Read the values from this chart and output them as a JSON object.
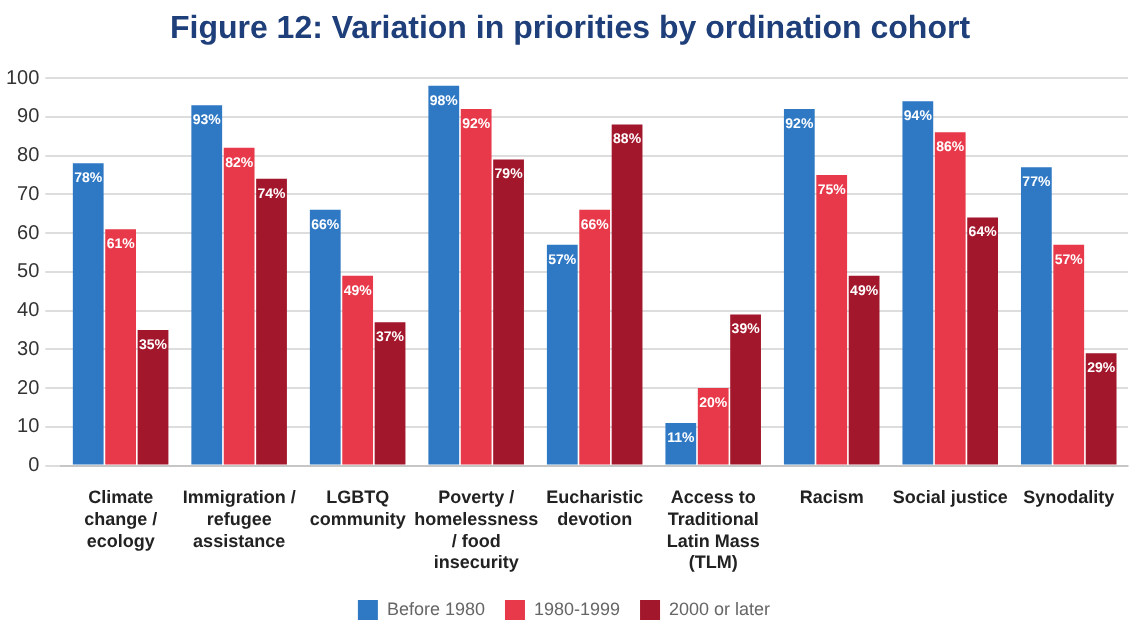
{
  "chart_data": {
    "type": "bar",
    "title": "Figure 12: Variation in priorities by ordination cohort",
    "categories": [
      "Climate change / ecology",
      "Immigration / refugee assistance",
      "LGBTQ community",
      "Poverty / homelessness / food insecurity",
      "Eucharistic devotion",
      "Access to Traditional Latin Mass (TLM)",
      "Racism",
      "Social justice",
      "Synodality"
    ],
    "series": [
      {
        "name": "Before 1980",
        "color": "#2f78c4",
        "values": [
          78,
          93,
          66,
          98,
          57,
          11,
          92,
          94,
          77
        ],
        "value_labels": [
          "78%",
          "93%",
          "66%",
          "98%",
          "57%",
          "11%",
          "92%",
          "94%",
          "77%"
        ]
      },
      {
        "name": "1980-1999",
        "color": "#e8394a",
        "values": [
          61,
          82,
          49,
          92,
          66,
          20,
          75,
          86,
          57
        ],
        "value_labels": [
          "61%",
          "82%",
          "49%",
          "92%",
          "66%",
          "20%",
          "75%",
          "86%",
          "57%"
        ]
      },
      {
        "name": "2000 or later",
        "color": "#a3172c",
        "values": [
          35,
          74,
          37,
          79,
          88,
          39,
          49,
          64,
          29
        ],
        "value_labels": [
          "35%",
          "74%",
          "37%",
          "79%",
          "88%",
          "39%",
          "49%",
          "64%",
          "29%"
        ]
      }
    ],
    "ylim": [
      0,
      100
    ],
    "yticks": [
      0,
      10,
      20,
      30,
      40,
      50,
      60,
      70,
      80,
      90,
      100
    ],
    "grid": "y",
    "legend": "bottom"
  }
}
